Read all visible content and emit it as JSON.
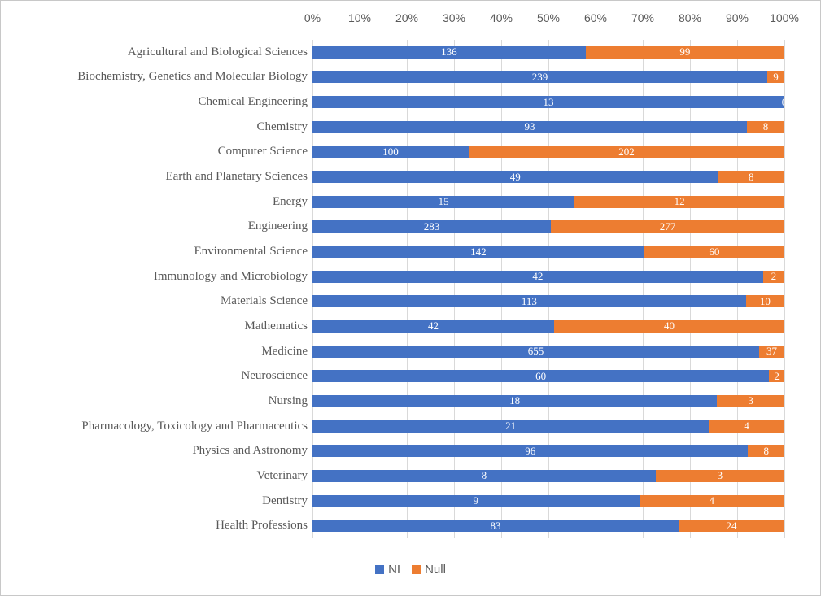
{
  "chart_data": {
    "type": "bar",
    "variant": "100%-stacked-horizontal",
    "title": "",
    "categories": [
      "Agricultural and Biological Sciences",
      "Biochemistry, Genetics and Molecular Biology",
      "Chemical Engineering",
      "Chemistry",
      "Computer Science",
      "Earth and Planetary Sciences",
      "Energy",
      "Engineering",
      "Environmental Science",
      "Immunology and Microbiology",
      "Materials Science",
      "Mathematics",
      "Medicine",
      "Neuroscience",
      "Nursing",
      "Pharmacology, Toxicology and Pharmaceutics",
      "Physics and Astronomy",
      "Veterinary",
      "Dentistry",
      "Health Professions"
    ],
    "series": [
      {
        "name": "NI",
        "color": "#4472C4",
        "values": [
          136,
          239,
          13,
          93,
          100,
          49,
          15,
          283,
          142,
          42,
          113,
          42,
          655,
          60,
          18,
          21,
          96,
          8,
          9,
          83
        ]
      },
      {
        "name": "Null",
        "color": "#ED7D31",
        "values": [
          99,
          9,
          0,
          8,
          202,
          8,
          12,
          277,
          60,
          2,
          10,
          40,
          37,
          2,
          3,
          4,
          8,
          3,
          4,
          24
        ]
      }
    ],
    "x_axis": {
      "position": "top",
      "range": [
        0,
        100
      ],
      "tick_labels": [
        "0%",
        "10%",
        "20%",
        "30%",
        "40%",
        "50%",
        "60%",
        "70%",
        "80%",
        "90%",
        "100%"
      ]
    },
    "legend": {
      "position": "bottom",
      "entries": [
        "NI",
        "Null"
      ]
    },
    "gridlines": true,
    "data_labels": "inside-center-white"
  },
  "colors": {
    "ni": "#4472C4",
    "null": "#ED7D31",
    "gridline": "#D9D9D9",
    "axis_text": "#595959",
    "data_label_text": "#FFFFFF",
    "frame_border": "#C8C8C8",
    "background": "#FFFFFF"
  }
}
